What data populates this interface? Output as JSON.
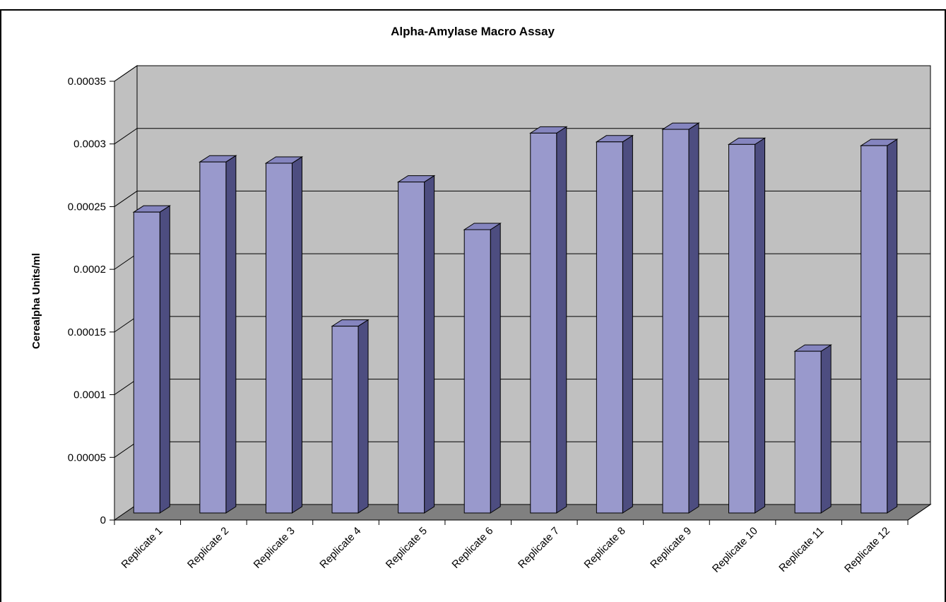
{
  "chart_data": {
    "type": "bar",
    "title": "Alpha-Amylase Macro Assay",
    "xlabel": "",
    "ylabel": "Cerealpha Units/ml",
    "categories": [
      "Replicate 1",
      "Replicate 2",
      "Replicate 3",
      "Replicate 4",
      "Replicate 5",
      "Replicate 6",
      "Replicate 7",
      "Replicate 8",
      "Replicate 9",
      "Replicate 10",
      "Replicate 11",
      "Replicate 12"
    ],
    "values": [
      0.00024,
      0.00028,
      0.000279,
      0.000149,
      0.000264,
      0.000226,
      0.000303,
      0.000296,
      0.000306,
      0.000294,
      0.000129,
      0.000293
    ],
    "ylim": [
      0,
      0.00035
    ],
    "yticks": [
      "0",
      "0.00005",
      "0.0001",
      "0.00015",
      "0.0002",
      "0.00025",
      "0.0003",
      "0.00035"
    ],
    "grid": true,
    "legend": "none",
    "style": "3d-column",
    "colors": {
      "bar_front": "#9999cc",
      "bar_top": "#8585bf",
      "bar_side": "#4d4d80",
      "back_wall": "#c0c0c0",
      "side_wall": "#c0c0c0",
      "floor": "#808080",
      "gridline": "#000000",
      "outline": "#000000"
    }
  }
}
